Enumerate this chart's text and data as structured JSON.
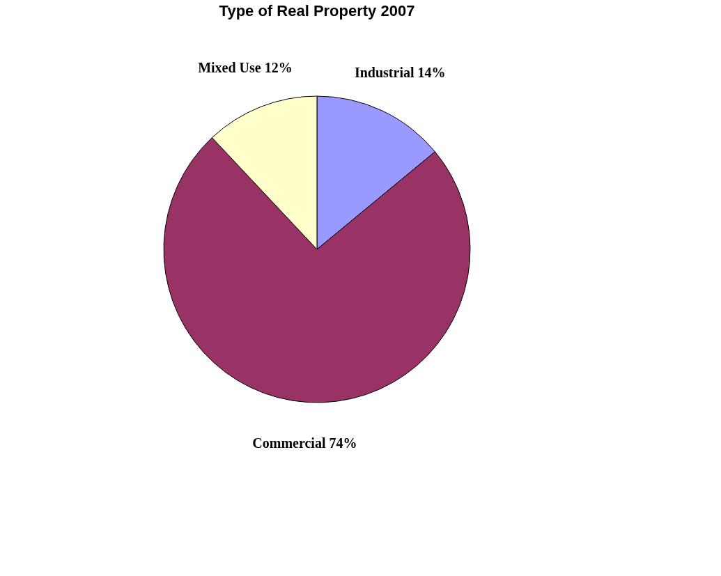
{
  "chart_data": {
    "type": "pie",
    "title": "Type of Real Property 2007",
    "categories": [
      "Industrial",
      "Commercial",
      "Mixed Use"
    ],
    "values": [
      14,
      74,
      12
    ],
    "value_labels": [
      "14%",
      "74%",
      "12%"
    ],
    "colors": [
      "#9999ff",
      "#993366",
      "#ffffcc"
    ],
    "legend": false
  }
}
